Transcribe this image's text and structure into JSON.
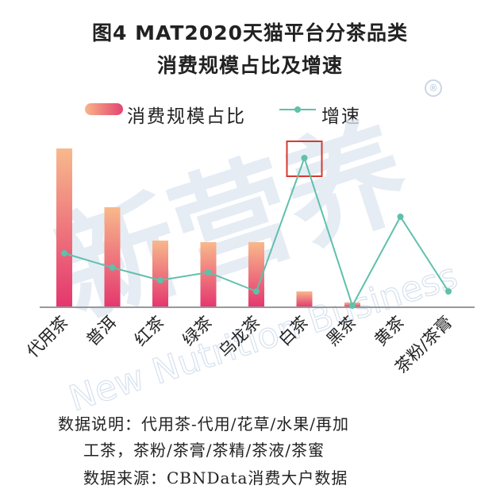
{
  "title_line1": "图4 MAT2020天猫平台分茶品类",
  "title_line2": "消费规模占比及增速",
  "legend": {
    "bar": "消费规模占比",
    "line": "增速"
  },
  "watermark": {
    "brand": "新营养",
    "sub": "New Nutrition Business",
    "reg": "®"
  },
  "notes": {
    "line1": "数据说明：代用茶-代用/花草/水果/再加",
    "line2": "工茶，茶粉/茶膏/茶精/茶液/茶蜜",
    "line3": "数据来源：CBNData消费大户数据"
  },
  "colors": {
    "bar_top": "#f8b98c",
    "bar_bottom": "#e4366e",
    "line": "#5fc0ab",
    "highlight": "#d63a2f",
    "axis": "#999999"
  },
  "chart_data": {
    "type": "bar",
    "categories": [
      "代用茶",
      "普洱",
      "红茶",
      "绿茶",
      "乌龙茶",
      "白茶",
      "黑茶",
      "黄茶",
      "茶粉/茶膏"
    ],
    "series": [
      {
        "name": "消费规模占比",
        "type": "bar",
        "values": [
          100,
          63,
          42,
          41,
          41,
          10,
          3,
          null,
          null
        ]
      },
      {
        "name": "增速",
        "type": "line",
        "values": [
          34,
          25,
          17,
          22,
          10,
          94,
          1,
          57,
          10
        ]
      }
    ],
    "ylim": [
      0,
      100
    ],
    "highlight_category": "白茶",
    "grid": false
  }
}
